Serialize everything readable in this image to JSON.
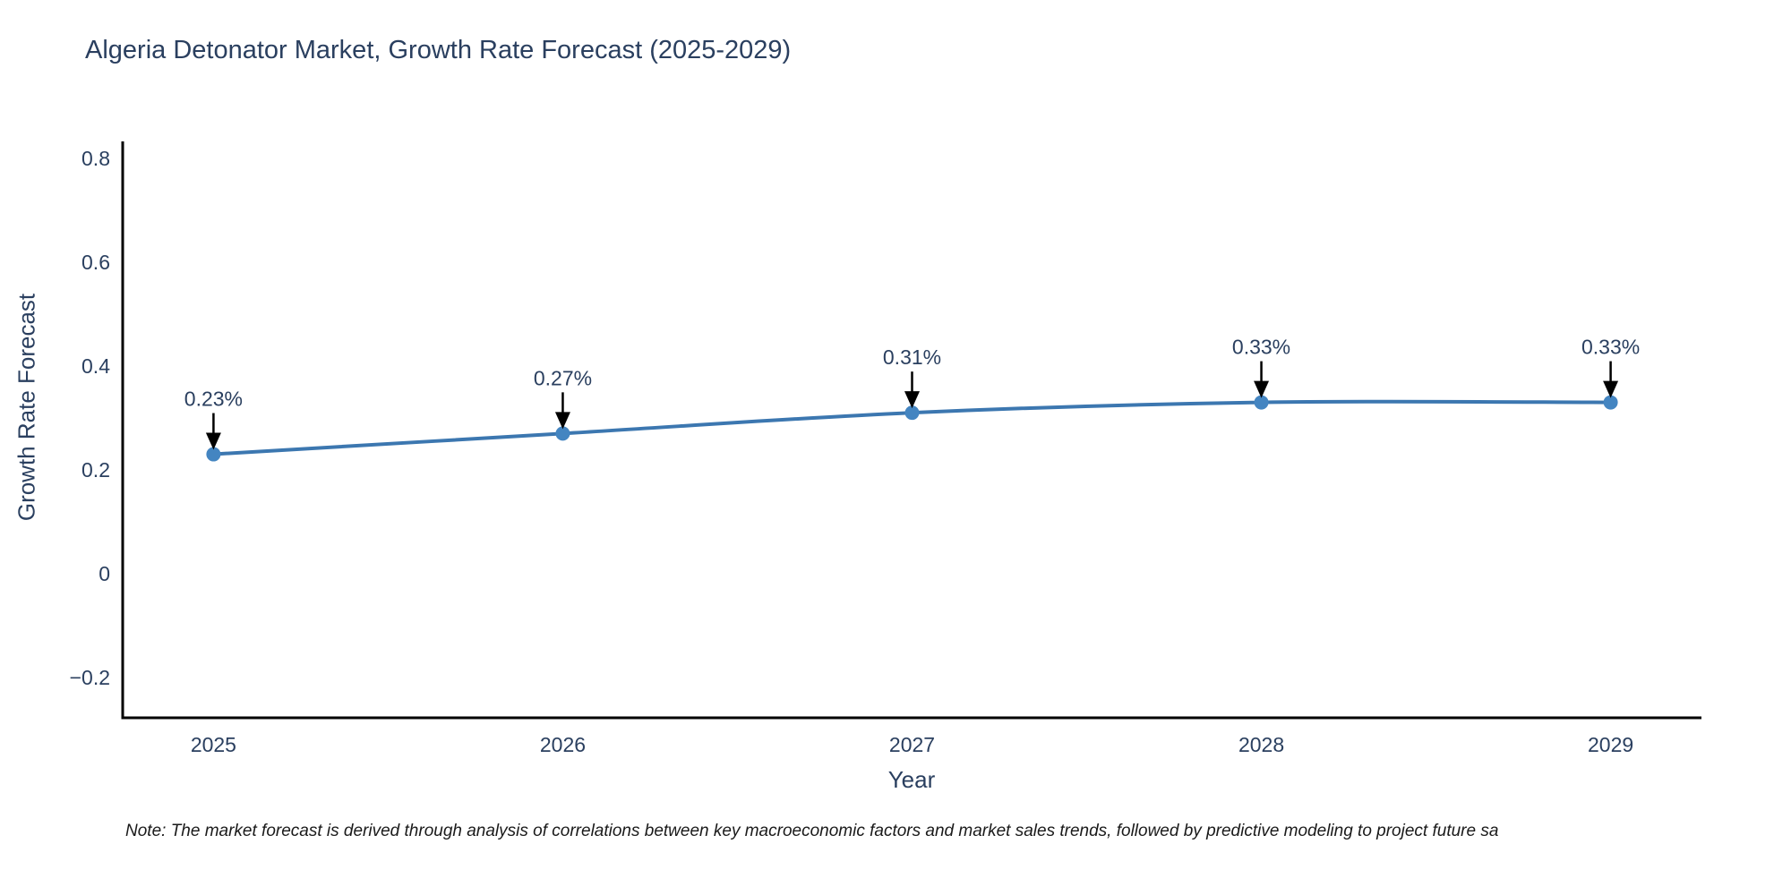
{
  "note": "Note: The market forecast is derived through analysis of correlations between key macroeconomic factors and market sales trends, followed by predictive modeling to project future sa",
  "chart_data": {
    "type": "line",
    "title": "Algeria Detonator Market, Growth Rate Forecast (2025-2029)",
    "xlabel": "Year",
    "ylabel": "Growth Rate Forecast",
    "x": [
      2025,
      2026,
      2027,
      2028,
      2029
    ],
    "y": [
      0.23,
      0.27,
      0.31,
      0.33,
      0.33
    ],
    "series": [
      {
        "name": "Growth Rate Forecast",
        "values": [
          0.23,
          0.27,
          0.31,
          0.33,
          0.33
        ]
      }
    ],
    "point_labels": [
      "0.23%",
      "0.27%",
      "0.31%",
      "0.33%",
      "0.33%"
    ],
    "xtick_labels": [
      "2025",
      "2026",
      "2027",
      "2028",
      "2029"
    ],
    "yticks": [
      -0.2,
      0,
      0.2,
      0.4,
      0.6,
      0.8
    ],
    "ytick_labels": [
      "−0.2",
      "0",
      "0.2",
      "0.4",
      "0.6",
      "0.8"
    ],
    "xlim": [
      2024.74,
      2029.26
    ],
    "ylim": [
      -0.278,
      0.833
    ],
    "grid": false,
    "legend": false,
    "line_shape": "spline",
    "colors": {
      "line": "#3c77b0",
      "marker": "#4485c1",
      "axis": "#000000",
      "text": "#2a3f5f",
      "annotation_arrow": "#000000"
    }
  }
}
